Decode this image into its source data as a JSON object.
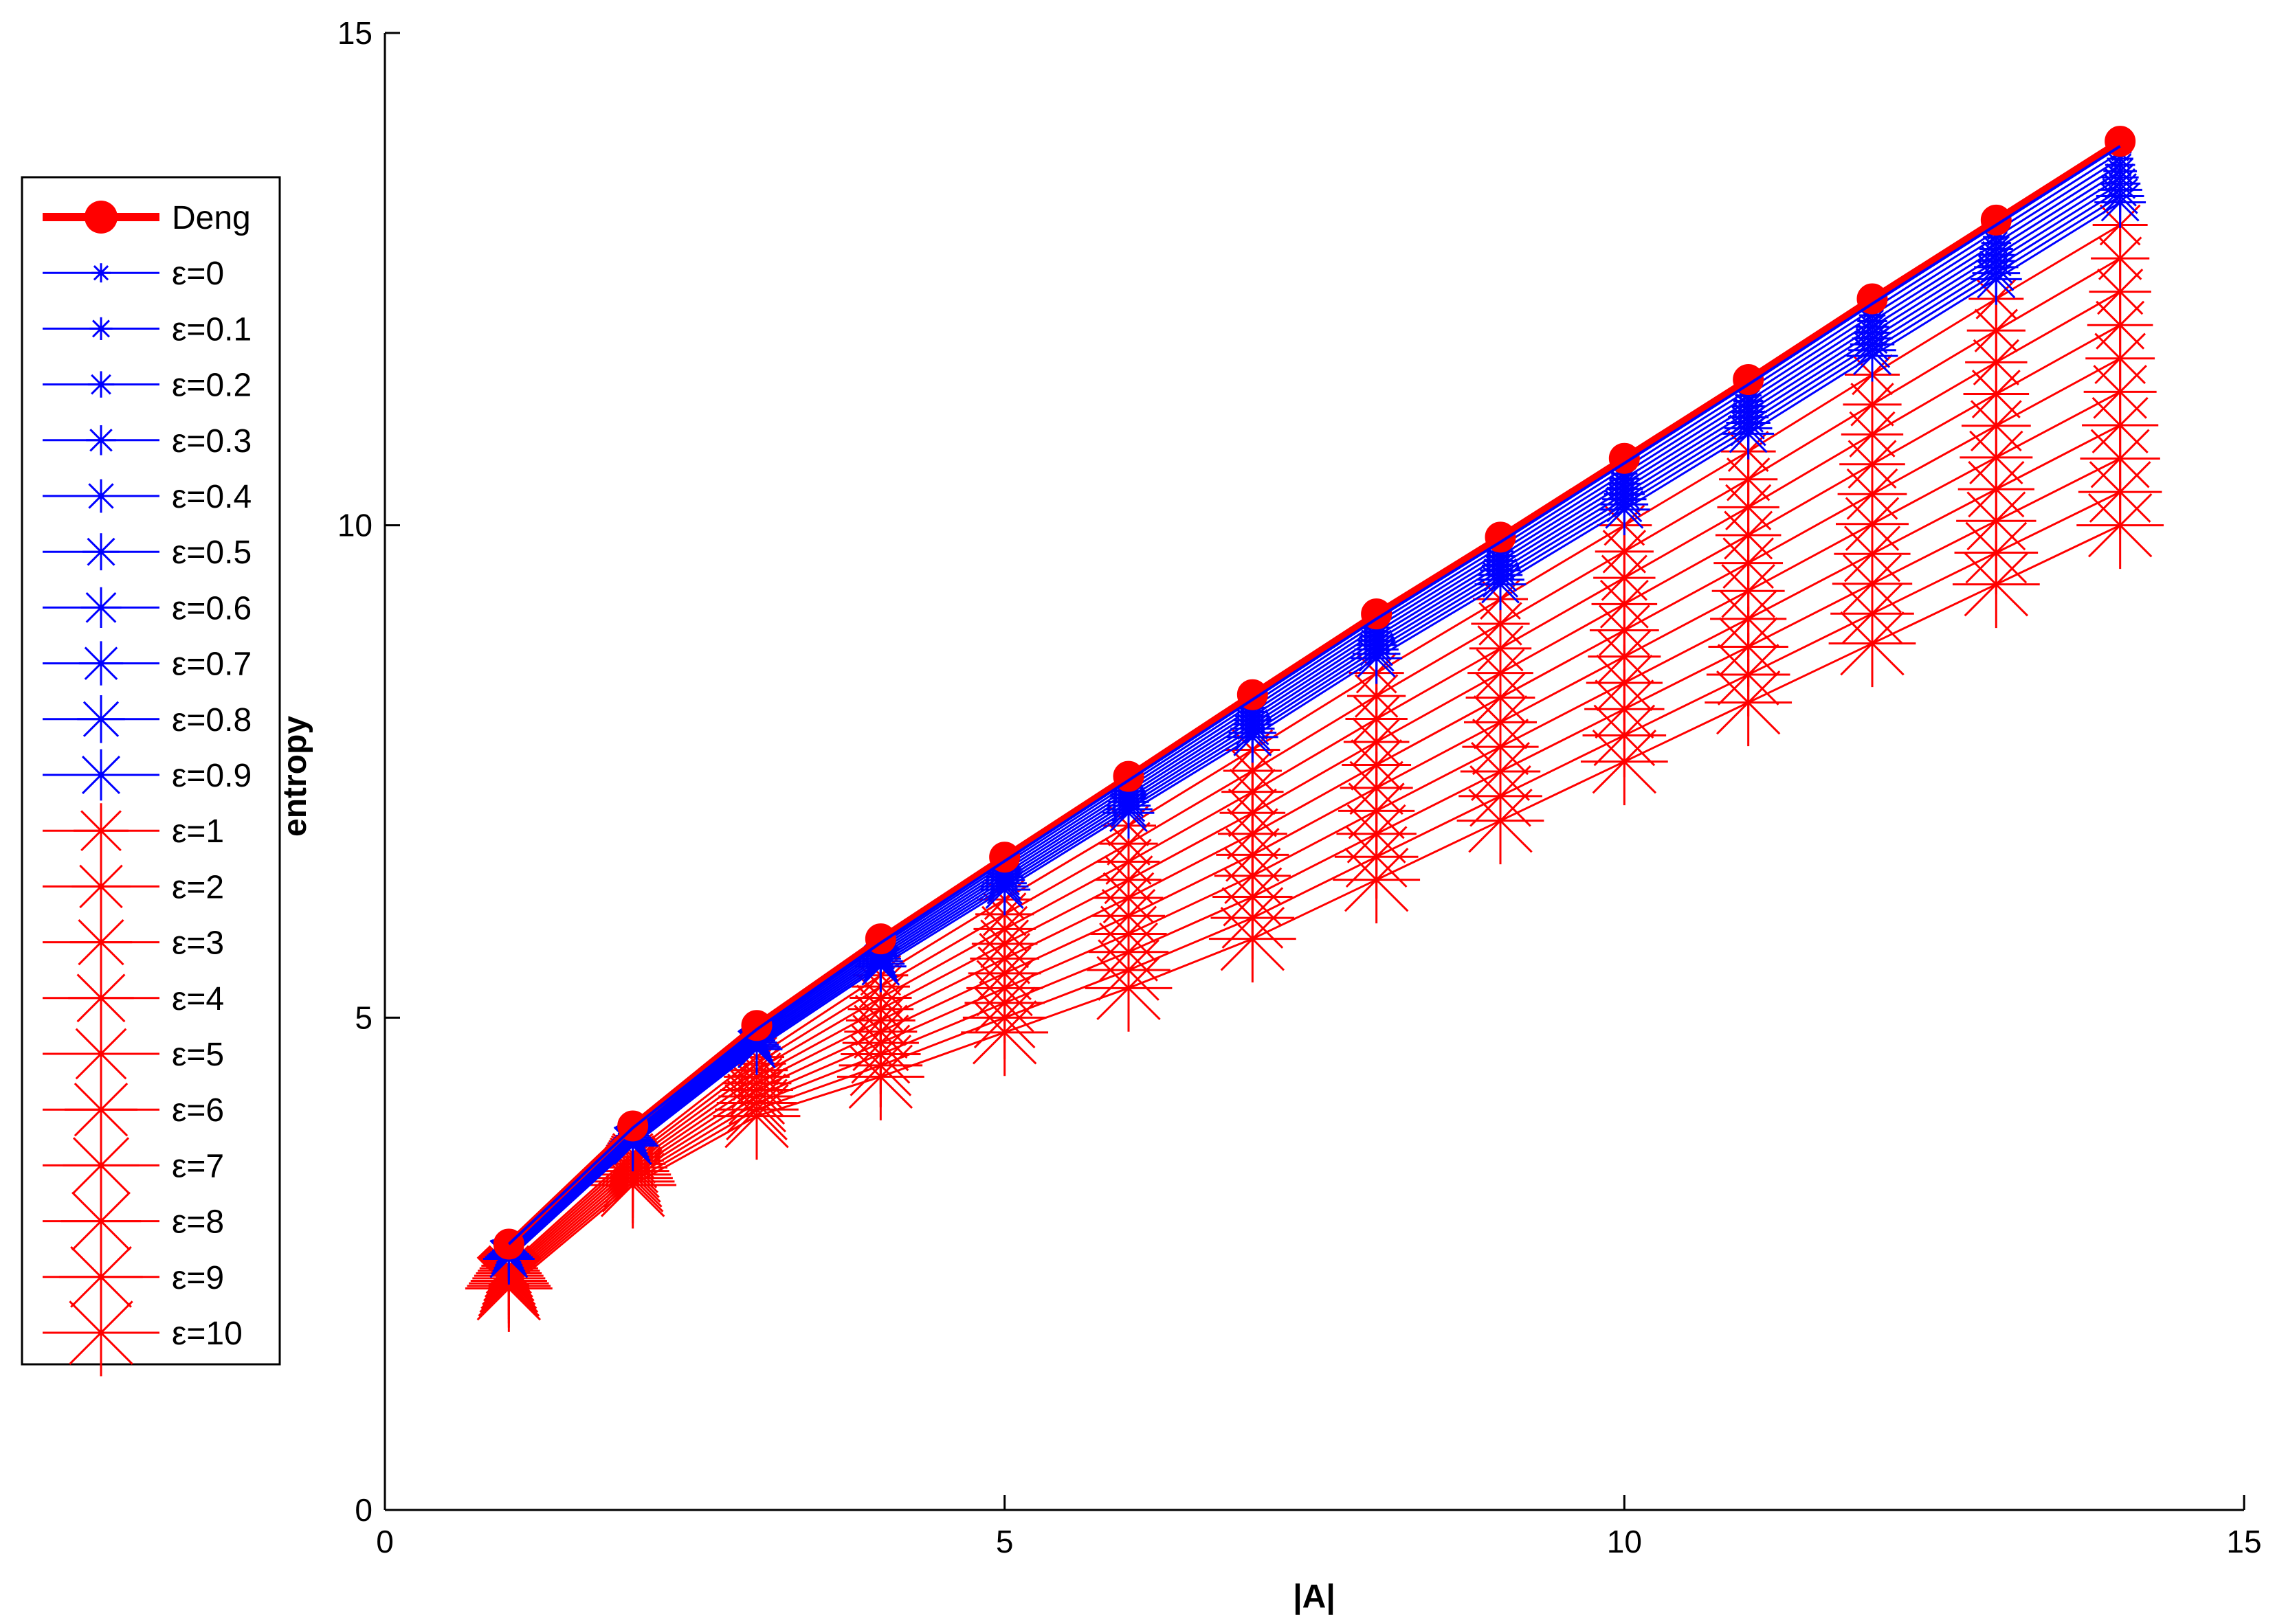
{
  "chart_data": {
    "type": "line",
    "title": "",
    "xlabel": "|A|",
    "ylabel": "entropy",
    "xlim": [
      0,
      15
    ],
    "ylim": [
      0,
      15
    ],
    "xticks": [
      0,
      5,
      10,
      15
    ],
    "yticks": [
      0,
      5,
      10,
      15
    ],
    "grid": false,
    "legend_position": "outside-left",
    "x": [
      1,
      2,
      3,
      4,
      5,
      6,
      7,
      8,
      9,
      10,
      11,
      12,
      13,
      14
    ],
    "deng": {
      "name": "Deng",
      "color": "#ff0000",
      "marker": "circle",
      "values": [
        2.7,
        3.9,
        4.92,
        5.8,
        6.63,
        7.45,
        8.28,
        9.1,
        9.88,
        10.68,
        11.48,
        12.3,
        13.1,
        13.9
      ]
    },
    "epsilon_series": [
      {
        "name": "ε=0",
        "color": "#0000ff",
        "epsilon": 0
      },
      {
        "name": "ε=0.1",
        "color": "#0000ff",
        "epsilon": 0.1
      },
      {
        "name": "ε=0.2",
        "color": "#0000ff",
        "epsilon": 0.2
      },
      {
        "name": "ε=0.3",
        "color": "#0000ff",
        "epsilon": 0.3
      },
      {
        "name": "ε=0.4",
        "color": "#0000ff",
        "epsilon": 0.4
      },
      {
        "name": "ε=0.5",
        "color": "#0000ff",
        "epsilon": 0.5
      },
      {
        "name": "ε=0.6",
        "color": "#0000ff",
        "epsilon": 0.6
      },
      {
        "name": "ε=0.7",
        "color": "#0000ff",
        "epsilon": 0.7
      },
      {
        "name": "ε=0.8",
        "color": "#0000ff",
        "epsilon": 0.8
      },
      {
        "name": "ε=0.9",
        "color": "#0000ff",
        "epsilon": 0.9
      },
      {
        "name": "ε=1",
        "color": "#ff0000",
        "epsilon": 1
      },
      {
        "name": "ε=2",
        "color": "#ff0000",
        "epsilon": 2
      },
      {
        "name": "ε=3",
        "color": "#ff0000",
        "epsilon": 3
      },
      {
        "name": "ε=4",
        "color": "#ff0000",
        "epsilon": 4
      },
      {
        "name": "ε=5",
        "color": "#ff0000",
        "epsilon": 5
      },
      {
        "name": "ε=6",
        "color": "#ff0000",
        "epsilon": 6
      },
      {
        "name": "ε=7",
        "color": "#ff0000",
        "epsilon": 7
      },
      {
        "name": "ε=8",
        "color": "#ff0000",
        "epsilon": 8
      },
      {
        "name": "ε=9",
        "color": "#ff0000",
        "epsilon": 9
      },
      {
        "name": "ε=10",
        "color": "#ff0000",
        "epsilon": 10
      }
    ],
    "epsilon_values_at_x": {
      "x": [
        1,
        2,
        3,
        4,
        5,
        6,
        7,
        8,
        9,
        10,
        11,
        12,
        13,
        14
      ],
      "eps0": [
        2.7,
        3.88,
        4.88,
        5.76,
        6.59,
        7.41,
        8.23,
        9.05,
        9.83,
        10.63,
        11.43,
        12.25,
        13.05,
        13.85
      ],
      "eps0_9": [
        2.55,
        3.7,
        4.68,
        5.52,
        6.3,
        7.08,
        7.85,
        8.65,
        9.4,
        10.16,
        10.93,
        11.72,
        12.5,
        13.28
      ],
      "eps1": [
        2.48,
        3.62,
        4.6,
        5.43,
        6.2,
        6.95,
        7.72,
        8.5,
        9.25,
        10.0,
        10.75,
        11.53,
        12.3,
        13.05
      ],
      "eps10": [
        2.25,
        3.3,
        4.0,
        4.4,
        4.85,
        5.3,
        5.8,
        6.4,
        7.0,
        7.6,
        8.2,
        8.8,
        9.4,
        10.0
      ]
    }
  }
}
